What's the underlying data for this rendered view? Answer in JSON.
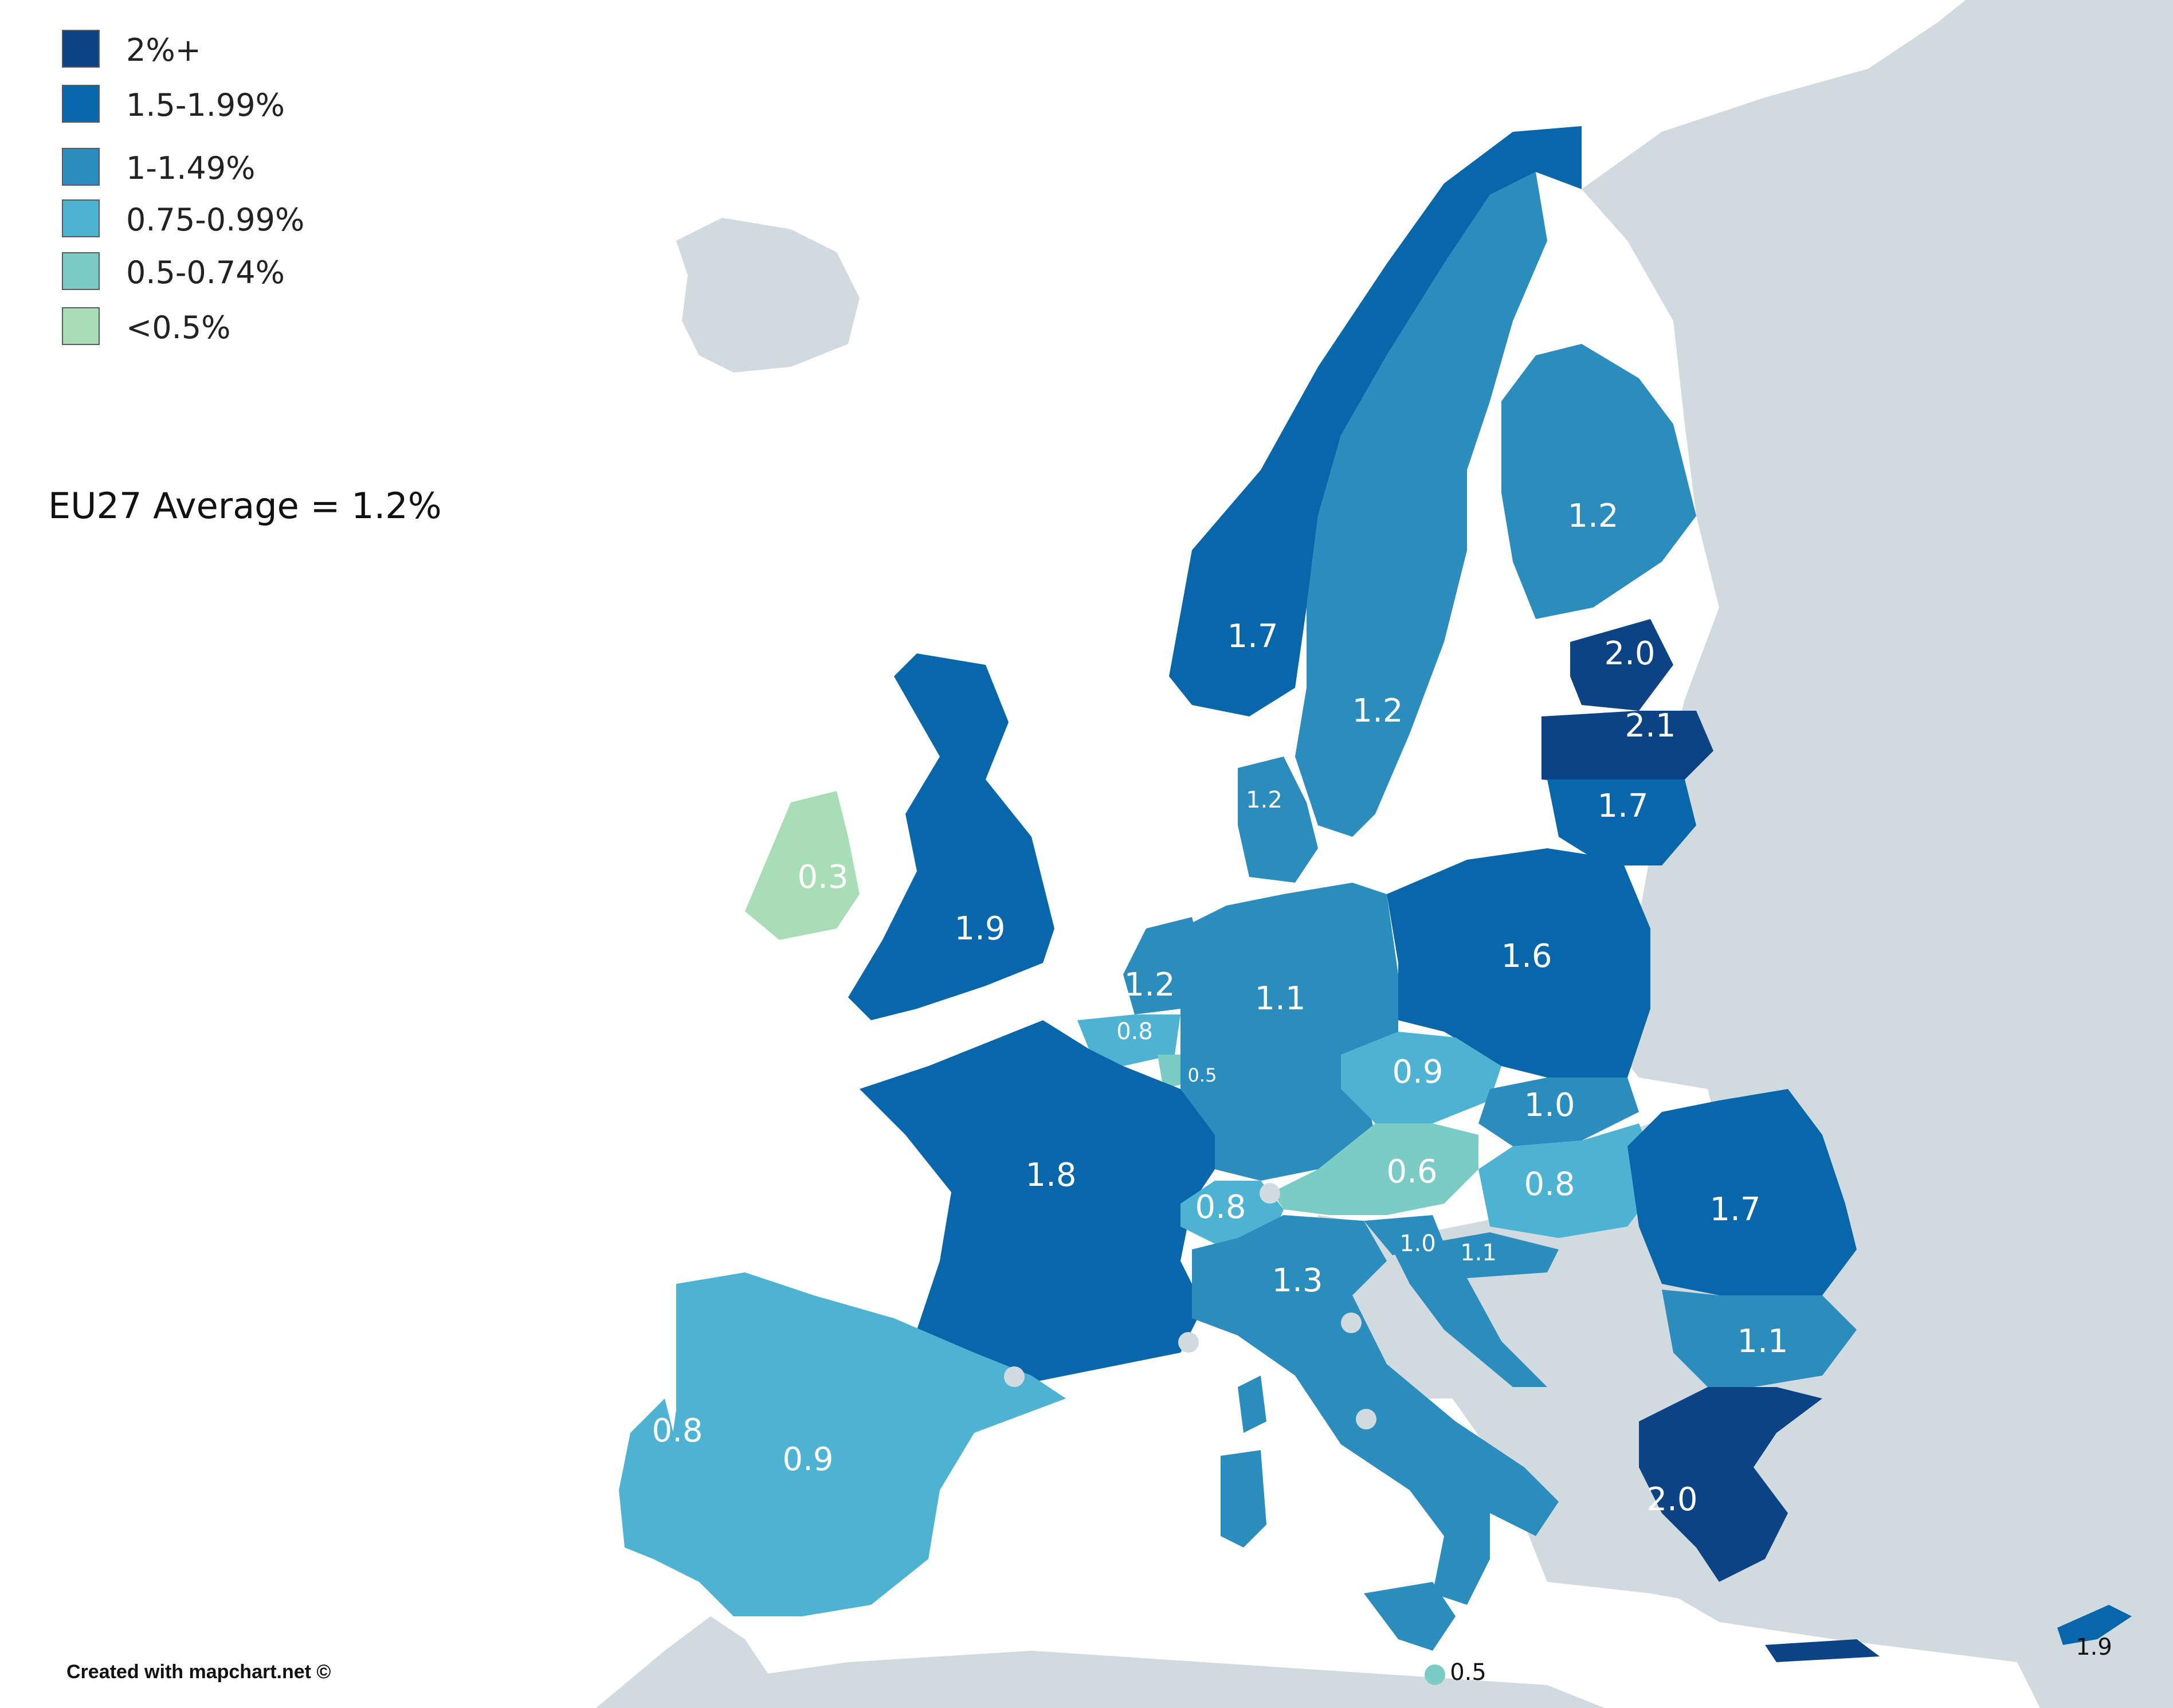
{
  "legend": [
    {
      "label": "2%+",
      "color": "#0b4385"
    },
    {
      "label": "1.5-1.99%",
      "color": "#0867ab"
    },
    {
      "label": "1-1.49%",
      "color": "#2b8cbe"
    },
    {
      "label": "0.75-0.99%",
      "color": "#4eb3d3"
    },
    {
      "label": "0.5-0.74%",
      "color": "#7bccc4"
    },
    {
      "label": "<0.5%",
      "color": "#a8ddb5"
    }
  ],
  "average": "EU27 Average = 1.2%",
  "credit": "Created with mapchart.net ©",
  "background_color": "#d1dadf",
  "regions": [
    {
      "name": "Norway",
      "value": "1.7",
      "color": "#0867ab"
    },
    {
      "name": "Sweden",
      "value": "1.2",
      "color": "#2b8cbe"
    },
    {
      "name": "Finland",
      "value": "1.2",
      "color": "#2b8cbe"
    },
    {
      "name": "Estonia",
      "value": "2.0",
      "color": "#0b4385"
    },
    {
      "name": "Latvia",
      "value": "2.1",
      "color": "#0b4385"
    },
    {
      "name": "Lithuania",
      "value": "1.7",
      "color": "#0867ab"
    },
    {
      "name": "Denmark",
      "value": "1.2",
      "color": "#2b8cbe"
    },
    {
      "name": "Ireland",
      "value": "0.3",
      "color": "#a8ddb5"
    },
    {
      "name": "United Kingdom",
      "value": "1.9",
      "color": "#0867ab"
    },
    {
      "name": "Netherlands",
      "value": "1.2",
      "color": "#2b8cbe"
    },
    {
      "name": "Belgium",
      "value": "0.8",
      "color": "#4eb3d3"
    },
    {
      "name": "Luxembourg",
      "value": "0.5",
      "color": "#7bccc4"
    },
    {
      "name": "Germany",
      "value": "1.1",
      "color": "#2b8cbe"
    },
    {
      "name": "Poland",
      "value": "1.6",
      "color": "#0867ab"
    },
    {
      "name": "Czechia",
      "value": "0.9",
      "color": "#4eb3d3"
    },
    {
      "name": "Slovakia",
      "value": "1.0",
      "color": "#2b8cbe"
    },
    {
      "name": "Austria",
      "value": "0.6",
      "color": "#7bccc4"
    },
    {
      "name": "Hungary",
      "value": "0.8",
      "color": "#4eb3d3"
    },
    {
      "name": "France",
      "value": "1.8",
      "color": "#0867ab"
    },
    {
      "name": "Switzerland",
      "value": "0.8",
      "color": "#4eb3d3"
    },
    {
      "name": "Slovenia",
      "value": "1.0",
      "color": "#2b8cbe"
    },
    {
      "name": "Croatia",
      "value": "1.1",
      "color": "#2b8cbe"
    },
    {
      "name": "Italy",
      "value": "1.3",
      "color": "#2b8cbe"
    },
    {
      "name": "Romania",
      "value": "1.7",
      "color": "#0867ab"
    },
    {
      "name": "Bulgaria",
      "value": "1.1",
      "color": "#2b8cbe"
    },
    {
      "name": "Greece",
      "value": "2.0",
      "color": "#0b4385"
    },
    {
      "name": "Spain",
      "value": "0.9",
      "color": "#4eb3d3"
    },
    {
      "name": "Portugal",
      "value": "0.8",
      "color": "#4eb3d3"
    },
    {
      "name": "Cyprus",
      "value": "1.9",
      "color": "#0867ab"
    },
    {
      "name": "Malta",
      "value": "0.5",
      "color": "#7bccc4"
    }
  ]
}
